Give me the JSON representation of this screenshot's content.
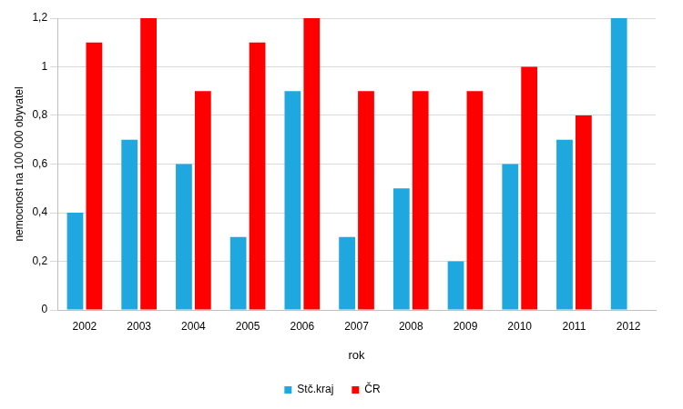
{
  "chart_data": {
    "type": "bar",
    "x_label": "rok",
    "y_label": "nemocnost na 100 000 obyvatel",
    "categories": [
      "2002",
      "2003",
      "2004",
      "2005",
      "2006",
      "2007",
      "2008",
      "2009",
      "2010",
      "2011",
      "2012"
    ],
    "series": [
      {
        "name": "Stč.kraj",
        "color": "#1fa8e0",
        "values": [
          0.4,
          0.7,
          0.6,
          0.3,
          0.9,
          0.3,
          0.5,
          0.2,
          0.6,
          0.7,
          1.2
        ]
      },
      {
        "name": "ČR",
        "color": "#ff0000",
        "values": [
          1.1,
          1.2,
          0.9,
          1.1,
          1.2,
          0.9,
          0.9,
          0.9,
          1.0,
          0.8,
          null
        ]
      }
    ],
    "ylim": [
      0,
      1.2
    ],
    "yticks": [
      0,
      {
        "value": 0.2,
        "label": "0,2"
      },
      {
        "value": 0.4,
        "label": "0,4"
      },
      {
        "value": 0.6,
        "label": "0,6"
      },
      {
        "value": 0.8,
        "label": "0,8"
      },
      1,
      {
        "value": 1.2,
        "label": "1,2"
      }
    ],
    "grid": true,
    "legend": "bottom"
  }
}
